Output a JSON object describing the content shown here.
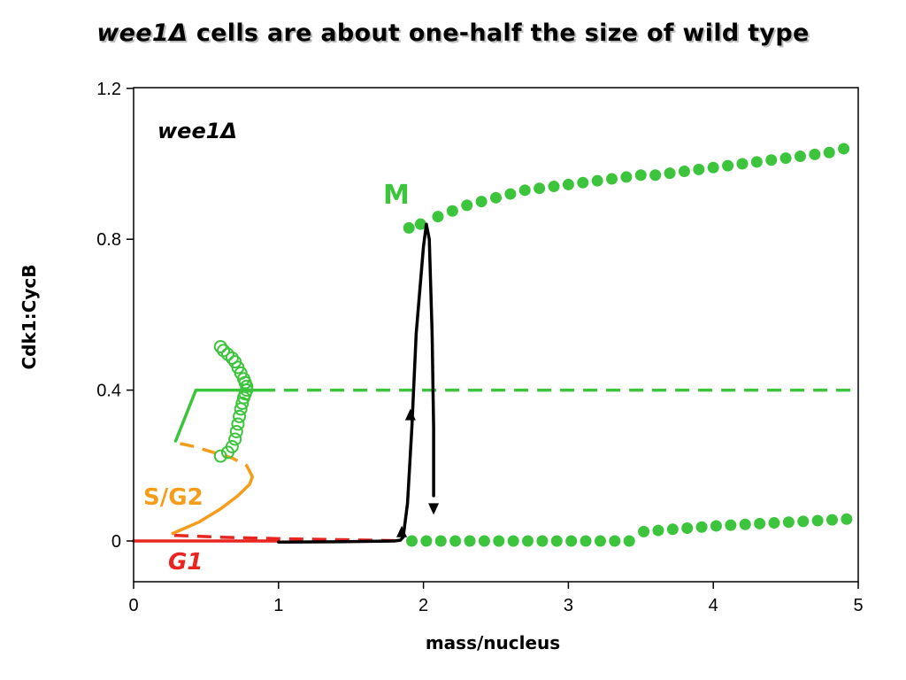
{
  "slide": {
    "title_italic": "wee1Δ",
    "title_rest": " cells are about one-half the size of wild type"
  },
  "chart_data": {
    "type": "line",
    "title": "wee1Δ cells are about one-half the size of wild type",
    "xlabel": "mass/nucleus",
    "ylabel": "Cdk1:CycB",
    "xlim": [
      0,
      5
    ],
    "ylim": [
      -0.1,
      1.2
    ],
    "x_ticks": [
      "0",
      "1",
      "2",
      "3",
      "4",
      "5"
    ],
    "y_ticks": [
      "0",
      "0.4",
      "0.8",
      "1.2"
    ],
    "grid": false,
    "annotations": {
      "inset_label": "wee1Δ",
      "m_label": "M",
      "sg2_label": "S/G2",
      "g1_label": "G1"
    },
    "colors": {
      "green": "#3cc43c",
      "orange": "#f59d1a",
      "red": "#e8251e",
      "black": "#000000"
    },
    "series": [
      {
        "name": "G1",
        "color": "#e8251e",
        "style": "solid",
        "points": [
          [
            0,
            0
          ],
          [
            1.0,
            0
          ]
        ]
      },
      {
        "name": "G1",
        "color": "#e8251e",
        "style": "dashed",
        "points": [
          [
            0.28,
            0.015
          ],
          [
            0.6,
            0.01
          ],
          [
            1.0,
            0.006
          ],
          [
            1.5,
            0.003
          ],
          [
            1.8,
            0.001
          ]
        ]
      },
      {
        "name": "S/G2",
        "color": "#f59d1a",
        "style": "solid",
        "points": [
          [
            0.27,
            0.02
          ],
          [
            0.45,
            0.05
          ],
          [
            0.6,
            0.085
          ],
          [
            0.72,
            0.12
          ],
          [
            0.8,
            0.15
          ],
          [
            0.82,
            0.17
          ]
        ]
      },
      {
        "name": "S/G2",
        "color": "#f59d1a",
        "style": "dashed",
        "points": [
          [
            0.82,
            0.17
          ],
          [
            0.78,
            0.2
          ],
          [
            0.68,
            0.22
          ],
          [
            0.55,
            0.235
          ],
          [
            0.42,
            0.25
          ],
          [
            0.3,
            0.26
          ]
        ]
      },
      {
        "name": "M",
        "color": "#3cc43c",
        "style": "solid",
        "points": [
          [
            0.29,
            0.265
          ],
          [
            0.43,
            0.4
          ],
          [
            0.88,
            0.4
          ]
        ]
      },
      {
        "name": "M",
        "color": "#3cc43c",
        "style": "dashed",
        "points": [
          [
            0.88,
            0.4
          ],
          [
            5.0,
            0.4
          ]
        ]
      },
      {
        "name": "M",
        "color": "#3cc43c",
        "style": "open-circles",
        "points": [
          [
            0.6,
            0.225
          ],
          [
            0.65,
            0.235
          ],
          [
            0.68,
            0.25
          ],
          [
            0.7,
            0.27
          ],
          [
            0.71,
            0.29
          ],
          [
            0.72,
            0.31
          ],
          [
            0.73,
            0.33
          ],
          [
            0.74,
            0.35
          ],
          [
            0.75,
            0.365
          ],
          [
            0.76,
            0.38
          ],
          [
            0.77,
            0.39
          ],
          [
            0.78,
            0.4
          ],
          [
            0.78,
            0.41
          ],
          [
            0.77,
            0.42
          ],
          [
            0.76,
            0.43
          ],
          [
            0.74,
            0.445
          ],
          [
            0.72,
            0.46
          ],
          [
            0.7,
            0.475
          ],
          [
            0.68,
            0.485
          ],
          [
            0.65,
            0.495
          ],
          [
            0.62,
            0.505
          ],
          [
            0.6,
            0.515
          ]
        ]
      },
      {
        "name": "M",
        "color": "#3cc43c",
        "style": "dots",
        "points": [
          [
            1.9,
            0.83
          ],
          [
            1.98,
            0.84
          ],
          [
            2.1,
            0.86
          ],
          [
            2.2,
            0.875
          ],
          [
            2.3,
            0.89
          ],
          [
            2.4,
            0.9
          ],
          [
            2.5,
            0.91
          ],
          [
            2.6,
            0.92
          ],
          [
            2.7,
            0.93
          ],
          [
            2.8,
            0.935
          ],
          [
            2.9,
            0.94
          ],
          [
            3.0,
            0.945
          ],
          [
            3.1,
            0.95
          ],
          [
            3.2,
            0.955
          ],
          [
            3.3,
            0.96
          ],
          [
            3.4,
            0.965
          ],
          [
            3.5,
            0.97
          ],
          [
            3.6,
            0.97
          ],
          [
            3.7,
            0.975
          ],
          [
            3.8,
            0.98
          ],
          [
            3.9,
            0.985
          ],
          [
            4.0,
            0.99
          ],
          [
            4.1,
            0.995
          ],
          [
            4.2,
            1.0
          ],
          [
            4.3,
            1.005
          ],
          [
            4.4,
            1.01
          ],
          [
            4.5,
            1.015
          ],
          [
            4.6,
            1.02
          ],
          [
            4.7,
            1.025
          ],
          [
            4.8,
            1.03
          ],
          [
            4.9,
            1.04
          ]
        ]
      },
      {
        "name": "G1",
        "color": "#3cc43c",
        "style": "dots",
        "points": [
          [
            1.92,
            0
          ],
          [
            2.02,
            0
          ],
          [
            2.12,
            0
          ],
          [
            2.22,
            0
          ],
          [
            2.32,
            0
          ],
          [
            2.42,
            0
          ],
          [
            2.52,
            0
          ],
          [
            2.62,
            0
          ],
          [
            2.72,
            0
          ],
          [
            2.82,
            0
          ],
          [
            2.92,
            0
          ],
          [
            3.02,
            0
          ],
          [
            3.12,
            0
          ],
          [
            3.22,
            0
          ],
          [
            3.32,
            0
          ],
          [
            3.42,
            0
          ],
          [
            3.52,
            0.025
          ],
          [
            3.62,
            0.028
          ],
          [
            3.72,
            0.031
          ],
          [
            3.82,
            0.034
          ],
          [
            3.92,
            0.037
          ],
          [
            4.02,
            0.04
          ],
          [
            4.12,
            0.042
          ],
          [
            4.22,
            0.044
          ],
          [
            4.32,
            0.046
          ],
          [
            4.42,
            0.048
          ],
          [
            4.52,
            0.05
          ],
          [
            4.62,
            0.052
          ],
          [
            4.72,
            0.054
          ],
          [
            4.82,
            0.056
          ],
          [
            4.92,
            0.058
          ]
        ]
      },
      {
        "name": "trajectory",
        "color": "#000000",
        "style": "solid",
        "points": [
          [
            1.0,
            -0.003
          ],
          [
            1.4,
            -0.002
          ],
          [
            1.8,
            0.0
          ],
          [
            1.84,
            0.002
          ],
          [
            1.86,
            0.01
          ],
          [
            1.89,
            0.1
          ],
          [
            1.92,
            0.3
          ],
          [
            1.95,
            0.55
          ],
          [
            2.0,
            0.78
          ],
          [
            2.02,
            0.84
          ],
          [
            2.04,
            0.8
          ],
          [
            2.06,
            0.55
          ],
          [
            2.07,
            0.3
          ],
          [
            2.07,
            0.12
          ]
        ]
      }
    ],
    "arrows": [
      {
        "at": [
          1.85,
          0.01
        ],
        "direction": "up"
      },
      {
        "at": [
          1.91,
          0.32
        ],
        "direction": "up"
      },
      {
        "at": [
          2.07,
          0.1
        ],
        "direction": "down"
      }
    ]
  }
}
